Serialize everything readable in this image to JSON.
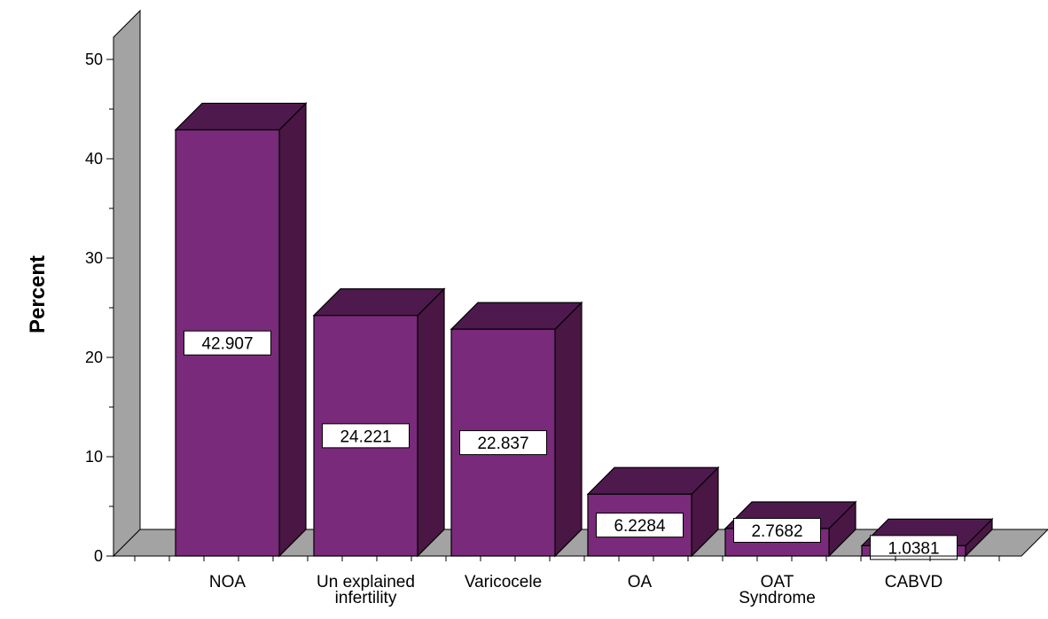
{
  "chart_data": {
    "type": "bar",
    "title": "",
    "xlabel": "",
    "ylabel": "Percent",
    "ylim": [
      0,
      50
    ],
    "yticks": [
      0,
      10,
      20,
      30,
      40,
      50
    ],
    "grid": false,
    "legend": "none",
    "three_d": true,
    "categories": [
      [
        "NOA"
      ],
      [
        "Un explained",
        "infertility"
      ],
      [
        "Varicocele"
      ],
      [
        "OA"
      ],
      [
        "OAT",
        "Syndrome"
      ],
      [
        "CABVD"
      ]
    ],
    "values": [
      42.907,
      24.221,
      22.837,
      6.2284,
      2.7682,
      1.0381
    ],
    "data_labels": [
      "42.907",
      "24.221",
      "22.837",
      "6.2284",
      "2.7682",
      "1.0381"
    ],
    "colors": {
      "bar_front": "#7a2a7a",
      "bar_top": "#4e1a4e",
      "bar_side": "#4a1644",
      "wall": "#a3a3a3",
      "floor": "#a3a3a3"
    }
  }
}
